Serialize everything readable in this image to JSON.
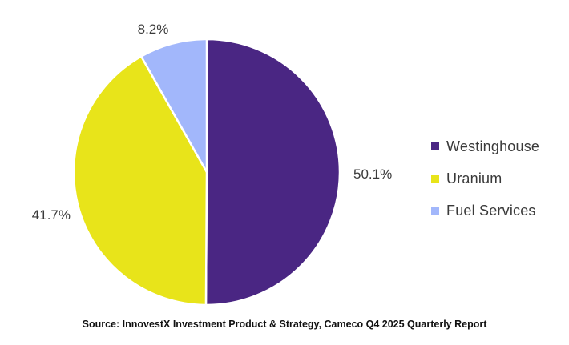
{
  "chart_data": {
    "type": "pie",
    "title": "",
    "slices": [
      {
        "label": "Westinghouse",
        "value": 50.1,
        "display": "50.1%",
        "color": "#4a2683"
      },
      {
        "label": "Uranium",
        "value": 41.7,
        "display": "41.7%",
        "color": "#e8e41a"
      },
      {
        "label": "Fuel Services",
        "value": 8.2,
        "display": "8.2%",
        "color": "#a2b7fb"
      }
    ],
    "legend_position": "right",
    "start": "12 o'clock",
    "direction": "clockwise"
  },
  "source": "Source: InnovestX Investment Product & Strategy, Cameco Q4 2025 Quarterly Report"
}
